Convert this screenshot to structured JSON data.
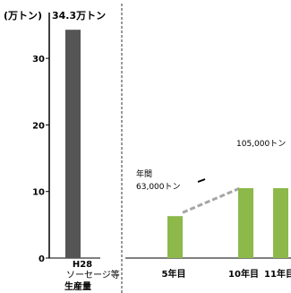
{
  "chart_data": [
    {
      "type": "bar",
      "unit_label": "(万トン)",
      "header_value": "34.3万トン",
      "y_ticks": [
        0,
        100,
        200,
        300
      ],
      "y_tick_labels": [
        "0",
        "10",
        "20",
        "30"
      ],
      "ylim": [
        0,
        350
      ],
      "categories": [
        "H28"
      ],
      "category_sublabels": [
        "ソーセージ等",
        "生産量"
      ],
      "values": [
        343
      ],
      "bar_color": "#555555"
    },
    {
      "type": "bar",
      "categories": [
        "5年目",
        "10年目",
        "11年目"
      ],
      "values": [
        63,
        105,
        105
      ],
      "bar_color": "#8db84a",
      "ylim": [
        0,
        350
      ],
      "annotations": {
        "start_line1": "年間",
        "start_line2": "63,000トン",
        "end": "105,000トン"
      },
      "trend_line_color": "#a6a6a6"
    }
  ]
}
